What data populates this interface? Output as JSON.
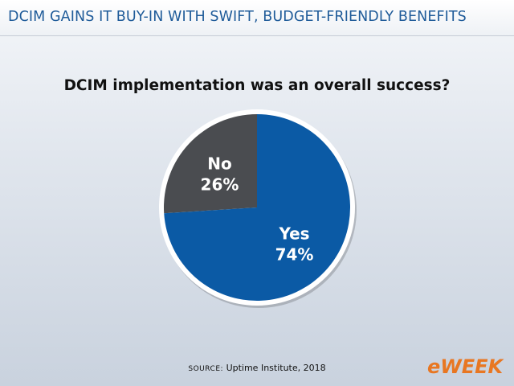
{
  "header": {
    "title": "DCIM GAINS IT BUY-IN WITH SWIFT, BUDGET-FRIENDLY BENEFITS"
  },
  "chart_data": {
    "type": "pie",
    "title": "DCIM implementation was an overall success?",
    "slices": [
      {
        "label": "No",
        "value": 26,
        "display": "26%",
        "color": "#4a4c50"
      },
      {
        "label": "Yes",
        "value": 74,
        "display": "74%",
        "color": "#0b5aa5"
      }
    ]
  },
  "source": {
    "label": "SOURCE:",
    "text": "Uptime Institute, 2018"
  },
  "logo": {
    "text": "eWEEK"
  },
  "colors": {
    "accent": "#1f5b99",
    "yes": "#0b5aa5",
    "no": "#4a4c50",
    "logo": "#e87722"
  }
}
